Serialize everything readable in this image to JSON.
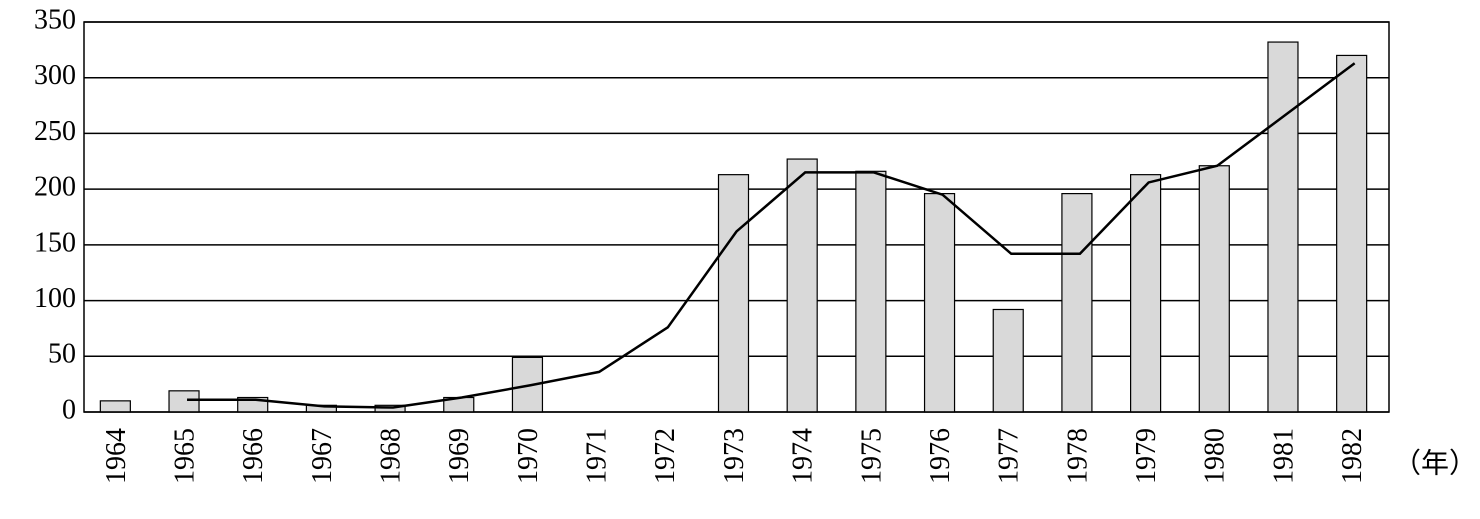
{
  "chart_data": {
    "type": "bar",
    "x_label": "（年）",
    "categories": [
      "1964",
      "1965",
      "1966",
      "1967",
      "1968",
      "1969",
      "1970",
      "1971",
      "1972",
      "1973",
      "1974",
      "1975",
      "1976",
      "1977",
      "1978",
      "1979",
      "1980",
      "1981",
      "1982"
    ],
    "series": [
      {
        "type": "bar",
        "color": "#d9d9d9",
        "values": [
          10,
          19,
          13,
          6,
          6,
          13,
          49,
          0,
          0,
          213,
          227,
          216,
          196,
          92,
          196,
          213,
          221,
          332,
          320
        ]
      },
      {
        "type": "line",
        "color": "#000000",
        "values": [
          null,
          11,
          11,
          5,
          4,
          13,
          24,
          36,
          76,
          162,
          215,
          215,
          195,
          142,
          142,
          206,
          221,
          267,
          313
        ]
      }
    ],
    "ylim": [
      0,
      350
    ],
    "yticks": [
      0,
      50,
      100,
      150,
      200,
      250,
      300,
      350
    ],
    "grid": true
  }
}
